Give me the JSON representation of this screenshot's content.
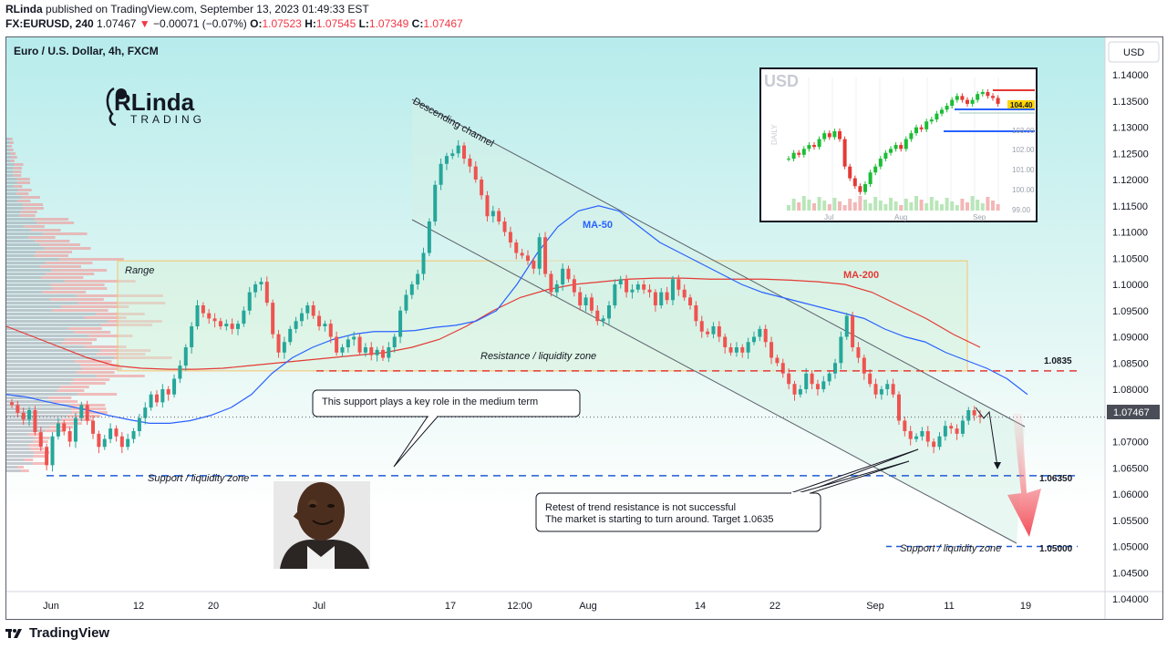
{
  "header": {
    "author": "RLinda",
    "published_text": "published on TradingView.com, September 13, 2023 01:49:33 EST",
    "symbol": "FX:EURUSD, 240",
    "last": "1.07467",
    "change": "−0.00071 (−0.07%)",
    "o_label": "O:",
    "o": "1.07523",
    "h_label": "H:",
    "h": "1.07545",
    "l_label": "L:",
    "l": "1.07349",
    "c_label": "C:",
    "c": "1.07467"
  },
  "chart_title": "Euro / U.S. Dollar, 4h, FXCM",
  "currency_button": "USD",
  "logo": {
    "line1": "RLinda",
    "line2": "TRADING"
  },
  "annotations": {
    "descending_channel": "Descending channel",
    "ma50": "MA-50",
    "ma200": "MA-200",
    "range": "Range",
    "resistance_zone": "Resistance / liquidity zone",
    "support_zone": "Support / liquidity zone",
    "support_zone2": "Support / liquidity zone",
    "callout1": "This support plays a key role in the medium term",
    "callout2_line1": "Retest of trend resistance is not successful",
    "callout2_line2": "The market is starting to turn around. Target 1.0635"
  },
  "colors": {
    "up": "#26a69a",
    "down": "#ef5350",
    "ma50": "#2962ff",
    "ma200": "#e53935",
    "resistance_line": "#e53935",
    "support_line": "#1e5bd6",
    "background_top": "#b8ecec",
    "background_bottom": "#ffffff",
    "range_box": "#ffe0a0"
  },
  "inset": {
    "title": "USD",
    "side_label": "DAILY",
    "price_tag": "104.40",
    "y_ticks": [
      "103.00",
      "102.00",
      "101.00",
      "100.00",
      "99.00"
    ],
    "x_ticks": [
      "Jul",
      "Aug",
      "Sep"
    ]
  },
  "chart_data": {
    "type": "candlestick",
    "symbol": "EURUSD",
    "timeframe": "4h",
    "ylim": [
      1.04,
      1.142
    ],
    "y_ticks": [
      "1.14000",
      "1.13500",
      "1.13000",
      "1.12500",
      "1.12000",
      "1.11500",
      "1.11000",
      "1.10500",
      "1.10000",
      "1.09500",
      "1.09000",
      "1.08500",
      "1.08000",
      "1.07500",
      "1.07000",
      "1.06500",
      "1.06000",
      "1.05500",
      "1.05000",
      "1.04500",
      "1.04000"
    ],
    "x_ticks": [
      "Jun",
      "12",
      "20",
      "Jul",
      "17",
      "12:00",
      "Aug",
      "14",
      "22",
      "Sep",
      "11",
      "19"
    ],
    "levels": [
      {
        "name": "Resistance / liquidity zone",
        "value": 1.0835,
        "label": "1.0835"
      },
      {
        "name": "Support / liquidity zone",
        "value": 1.0635,
        "label": "1.06350"
      },
      {
        "name": "Support / liquidity zone",
        "value": 1.05,
        "label": "1.05000"
      }
    ],
    "current_price": "1.07467",
    "range_box": {
      "low": 1.0835,
      "high": 1.1045,
      "from": "Jun 8",
      "to": "Aug 28"
    },
    "closes": [
      1.077,
      1.0755,
      1.0742,
      1.076,
      1.0718,
      1.069,
      1.0655,
      1.071,
      1.0735,
      1.072,
      1.07,
      1.0745,
      1.077,
      1.074,
      1.0715,
      1.069,
      1.0705,
      1.0725,
      1.071,
      1.069,
      1.0705,
      1.072,
      1.0745,
      1.0765,
      1.079,
      1.0775,
      1.08,
      1.079,
      1.082,
      1.0845,
      1.088,
      1.092,
      1.096,
      1.0945,
      1.0935,
      1.093,
      1.092,
      1.0925,
      1.0915,
      1.0925,
      1.095,
      1.0985,
      1.1,
      1.1005,
      1.0965,
      1.0905,
      1.087,
      1.089,
      1.0915,
      1.093,
      1.0945,
      1.096,
      1.094,
      1.092,
      1.0925,
      1.09,
      1.087,
      1.088,
      1.0895,
      1.09,
      1.087,
      1.088,
      1.0865,
      1.0875,
      1.086,
      1.088,
      1.09,
      1.095,
      1.098,
      1.1,
      1.102,
      1.106,
      1.112,
      1.119,
      1.123,
      1.1245,
      1.125,
      1.1265,
      1.124,
      1.1225,
      1.12,
      1.117,
      1.113,
      1.114,
      1.112,
      1.11,
      1.108,
      1.106,
      1.1055,
      1.1045,
      1.103,
      1.109,
      1.102,
      1.0985,
      1.1,
      1.103,
      1.101,
      1.0985,
      1.096,
      1.0975,
      1.095,
      1.093,
      1.0935,
      1.096,
      1.1,
      1.101,
      1.0985,
      1.099,
      1.1,
      1.099,
      1.0985,
      1.096,
      1.0985,
      1.097,
      1.101,
      1.099,
      1.0975,
      1.096,
      1.093,
      1.091,
      1.0905,
      1.092,
      1.09,
      1.088,
      1.087,
      1.088,
      1.087,
      1.089,
      1.09,
      1.0915,
      1.089,
      1.086,
      1.085,
      1.083,
      1.081,
      1.079,
      1.08,
      1.083,
      1.081,
      1.08,
      1.0815,
      1.083,
      1.085,
      1.09,
      1.094,
      1.088,
      1.086,
      1.083,
      1.081,
      1.079,
      1.08,
      1.081,
      1.079,
      1.074,
      1.072,
      1.0705,
      1.071,
      1.072,
      1.07,
      1.069,
      1.071,
      1.073,
      1.0725,
      1.0715,
      1.074,
      1.076,
      1.075,
      1.0747
    ],
    "ma50": [
      1.079,
      1.0785,
      1.0776,
      1.0768,
      1.076,
      1.075,
      1.0742,
      1.0735,
      1.0735,
      1.074,
      1.075,
      1.0765,
      1.079,
      1.083,
      1.086,
      1.088,
      1.0895,
      1.0905,
      1.091,
      1.091,
      1.0912,
      1.0918,
      1.0922,
      1.093,
      1.095,
      1.1,
      1.106,
      1.111,
      1.114,
      1.115,
      1.114,
      1.111,
      1.108,
      1.106,
      1.104,
      1.102,
      1.1,
      1.0985,
      1.0975,
      1.0965,
      1.0955,
      1.0945,
      1.0935,
      1.0915,
      1.09,
      1.089,
      1.087,
      1.0855,
      1.084,
      1.082,
      1.079
    ],
    "ma200": [
      1.092,
      1.09,
      1.088,
      1.086,
      1.0845,
      1.084,
      1.0838,
      1.0838,
      1.084,
      1.0845,
      1.085,
      1.0855,
      1.086,
      1.0865,
      1.087,
      1.088,
      1.0895,
      1.092,
      1.095,
      1.0975,
      1.099,
      1.1,
      1.1005,
      1.101,
      1.1012,
      1.1012,
      1.101,
      1.101,
      1.101,
      1.1008,
      1.1005,
      1.1,
      1.0985,
      1.096,
      1.0935,
      1.0905,
      1.088
    ]
  }
}
